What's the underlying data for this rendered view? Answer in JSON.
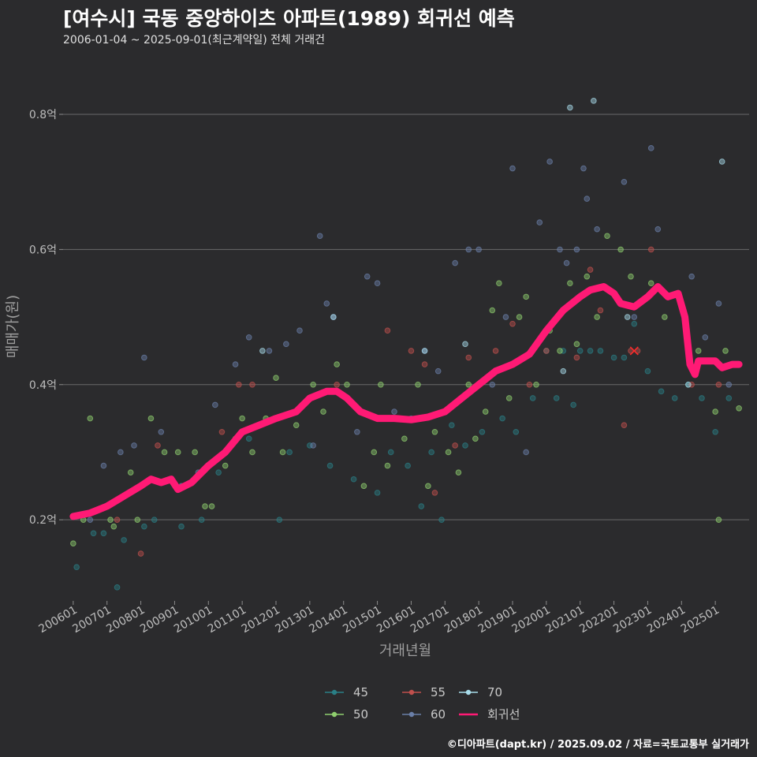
{
  "header": {
    "title": "[여수시] 국동 중앙하이츠 아파트(1989) 회귀선 예측",
    "subtitle": "2006-01-04 ~ 2025-09-01(최근계약일) 전체 거래건"
  },
  "footer": {
    "credit": "©디아파트(dapt.kr) / 2025.09.02 / 자료=국토교통부 실거래가"
  },
  "chart_data": {
    "type": "scatter",
    "title": "[여수시] 국동 중앙하이츠 아파트(1989) 회귀선 예측",
    "xlabel": "거래년월",
    "ylabel": "매매가(원)",
    "xlim": [
      2005.7,
      2026.0
    ],
    "ylim": [
      0.08,
      0.87
    ],
    "yticks": [
      0.2,
      0.4,
      0.6,
      0.8
    ],
    "ytick_labels": [
      "0.2억",
      "0.4억",
      "0.6억",
      "0.8억"
    ],
    "xticks": [
      2006,
      2007,
      2008,
      2009,
      2010,
      2011,
      2012,
      2013,
      2014,
      2015,
      2016,
      2017,
      2018,
      2019,
      2020,
      2021,
      2022,
      2023,
      2024,
      2025
    ],
    "xtick_labels": [
      "200601",
      "200701",
      "200801",
      "200901",
      "201001",
      "201101",
      "201201",
      "201301",
      "201401",
      "201501",
      "201601",
      "201701",
      "201801",
      "201901",
      "202001",
      "202101",
      "202201",
      "202301",
      "202401",
      "202501"
    ],
    "legend": [
      {
        "name": "45",
        "color": "#2a7f86"
      },
      {
        "name": "50",
        "color": "#8fcf6e"
      },
      {
        "name": "55",
        "color": "#c0504d"
      },
      {
        "name": "60",
        "color": "#6a7fa8"
      },
      {
        "name": "70",
        "color": "#a8dcea"
      },
      {
        "name": "회귀선",
        "color": "#ff1a75"
      }
    ],
    "series": [
      {
        "name": "45",
        "color": "#2a7f86",
        "points": [
          [
            2006.1,
            0.13
          ],
          [
            2006.6,
            0.18
          ],
          [
            2006.9,
            0.18
          ],
          [
            2007.3,
            0.1
          ],
          [
            2007.5,
            0.17
          ],
          [
            2008.1,
            0.19
          ],
          [
            2008.4,
            0.2
          ],
          [
            2009.2,
            0.19
          ],
          [
            2009.8,
            0.2
          ],
          [
            2010.3,
            0.27
          ],
          [
            2011.2,
            0.32
          ],
          [
            2012.1,
            0.2
          ],
          [
            2012.4,
            0.3
          ],
          [
            2013.0,
            0.31
          ],
          [
            2013.6,
            0.28
          ],
          [
            2014.3,
            0.26
          ],
          [
            2015.0,
            0.24
          ],
          [
            2015.4,
            0.3
          ],
          [
            2015.9,
            0.28
          ],
          [
            2016.3,
            0.22
          ],
          [
            2016.6,
            0.3
          ],
          [
            2016.9,
            0.2
          ],
          [
            2017.2,
            0.34
          ],
          [
            2017.6,
            0.31
          ],
          [
            2018.1,
            0.33
          ],
          [
            2018.7,
            0.35
          ],
          [
            2019.1,
            0.33
          ],
          [
            2019.6,
            0.38
          ],
          [
            2020.0,
            0.45
          ],
          [
            2020.3,
            0.38
          ],
          [
            2020.5,
            0.45
          ],
          [
            2020.8,
            0.37
          ],
          [
            2021.0,
            0.45
          ],
          [
            2021.3,
            0.45
          ],
          [
            2021.6,
            0.45
          ],
          [
            2022.0,
            0.44
          ],
          [
            2022.3,
            0.44
          ],
          [
            2022.6,
            0.49
          ],
          [
            2023.0,
            0.42
          ],
          [
            2023.4,
            0.39
          ],
          [
            2023.8,
            0.38
          ],
          [
            2024.2,
            0.4
          ],
          [
            2024.6,
            0.38
          ],
          [
            2025.0,
            0.33
          ],
          [
            2025.4,
            0.38
          ]
        ]
      },
      {
        "name": "50",
        "color": "#8fcf6e",
        "points": [
          [
            2006.0,
            0.165
          ],
          [
            2006.3,
            0.2
          ],
          [
            2006.5,
            0.35
          ],
          [
            2007.1,
            0.2
          ],
          [
            2007.2,
            0.19
          ],
          [
            2007.7,
            0.27
          ],
          [
            2007.9,
            0.2
          ],
          [
            2008.3,
            0.35
          ],
          [
            2008.7,
            0.3
          ],
          [
            2009.1,
            0.3
          ],
          [
            2009.6,
            0.3
          ],
          [
            2009.9,
            0.22
          ],
          [
            2010.1,
            0.22
          ],
          [
            2010.5,
            0.28
          ],
          [
            2010.8,
            0.32
          ],
          [
            2011.0,
            0.35
          ],
          [
            2011.3,
            0.3
          ],
          [
            2011.7,
            0.35
          ],
          [
            2012.0,
            0.41
          ],
          [
            2012.2,
            0.3
          ],
          [
            2012.6,
            0.34
          ],
          [
            2013.1,
            0.4
          ],
          [
            2013.4,
            0.36
          ],
          [
            2013.8,
            0.43
          ],
          [
            2014.1,
            0.4
          ],
          [
            2014.6,
            0.25
          ],
          [
            2014.9,
            0.3
          ],
          [
            2015.1,
            0.4
          ],
          [
            2015.3,
            0.28
          ],
          [
            2015.8,
            0.32
          ],
          [
            2016.2,
            0.4
          ],
          [
            2016.5,
            0.25
          ],
          [
            2016.7,
            0.33
          ],
          [
            2017.1,
            0.3
          ],
          [
            2017.4,
            0.27
          ],
          [
            2017.7,
            0.4
          ],
          [
            2017.9,
            0.32
          ],
          [
            2018.2,
            0.36
          ],
          [
            2018.4,
            0.51
          ],
          [
            2018.6,
            0.55
          ],
          [
            2018.9,
            0.38
          ],
          [
            2019.2,
            0.5
          ],
          [
            2019.4,
            0.53
          ],
          [
            2019.7,
            0.4
          ],
          [
            2020.1,
            0.48
          ],
          [
            2020.4,
            0.45
          ],
          [
            2020.7,
            0.55
          ],
          [
            2020.9,
            0.46
          ],
          [
            2021.2,
            0.56
          ],
          [
            2021.5,
            0.5
          ],
          [
            2021.8,
            0.62
          ],
          [
            2022.2,
            0.6
          ],
          [
            2022.5,
            0.56
          ],
          [
            2023.1,
            0.55
          ],
          [
            2023.5,
            0.5
          ],
          [
            2024.5,
            0.45
          ],
          [
            2025.0,
            0.36
          ],
          [
            2025.1,
            0.2
          ],
          [
            2025.3,
            0.45
          ],
          [
            2025.7,
            0.365
          ]
        ]
      },
      {
        "name": "55",
        "color": "#c0504d",
        "points": [
          [
            2007.3,
            0.2
          ],
          [
            2008.0,
            0.15
          ],
          [
            2008.5,
            0.31
          ],
          [
            2010.4,
            0.33
          ],
          [
            2010.9,
            0.4
          ],
          [
            2011.3,
            0.4
          ],
          [
            2013.8,
            0.4
          ],
          [
            2015.3,
            0.48
          ],
          [
            2016.0,
            0.45
          ],
          [
            2016.4,
            0.43
          ],
          [
            2016.7,
            0.24
          ],
          [
            2017.3,
            0.31
          ],
          [
            2017.7,
            0.44
          ],
          [
            2018.5,
            0.45
          ],
          [
            2019.0,
            0.49
          ],
          [
            2019.5,
            0.4
          ],
          [
            2020.0,
            0.45
          ],
          [
            2020.9,
            0.44
          ],
          [
            2021.3,
            0.57
          ],
          [
            2021.6,
            0.51
          ],
          [
            2022.3,
            0.34
          ],
          [
            2022.5,
            0.45
          ],
          [
            2022.7,
            0.45
          ],
          [
            2023.1,
            0.6
          ],
          [
            2024.3,
            0.4
          ],
          [
            2025.1,
            0.4
          ]
        ]
      },
      {
        "name": "60",
        "color": "#6a7fa8",
        "points": [
          [
            2006.5,
            0.2
          ],
          [
            2006.9,
            0.28
          ],
          [
            2007.4,
            0.3
          ],
          [
            2007.8,
            0.31
          ],
          [
            2008.1,
            0.44
          ],
          [
            2008.6,
            0.33
          ],
          [
            2009.2,
            0.25
          ],
          [
            2009.7,
            0.27
          ],
          [
            2010.2,
            0.37
          ],
          [
            2010.8,
            0.43
          ],
          [
            2011.2,
            0.47
          ],
          [
            2011.8,
            0.45
          ],
          [
            2012.3,
            0.46
          ],
          [
            2012.7,
            0.48
          ],
          [
            2013.1,
            0.31
          ],
          [
            2013.3,
            0.62
          ],
          [
            2013.5,
            0.52
          ],
          [
            2013.7,
            0.5
          ],
          [
            2014.4,
            0.33
          ],
          [
            2014.7,
            0.56
          ],
          [
            2015.0,
            0.55
          ],
          [
            2015.5,
            0.36
          ],
          [
            2016.0,
            0.35
          ],
          [
            2016.4,
            0.45
          ],
          [
            2016.8,
            0.42
          ],
          [
            2017.3,
            0.58
          ],
          [
            2017.7,
            0.6
          ],
          [
            2018.0,
            0.6
          ],
          [
            2018.4,
            0.4
          ],
          [
            2018.8,
            0.5
          ],
          [
            2019.0,
            0.72
          ],
          [
            2019.4,
            0.3
          ],
          [
            2019.8,
            0.64
          ],
          [
            2020.1,
            0.73
          ],
          [
            2020.4,
            0.6
          ],
          [
            2020.6,
            0.58
          ],
          [
            2020.9,
            0.6
          ],
          [
            2021.1,
            0.72
          ],
          [
            2021.2,
            0.675
          ],
          [
            2021.5,
            0.63
          ],
          [
            2022.3,
            0.7
          ],
          [
            2022.6,
            0.5
          ],
          [
            2023.1,
            0.75
          ],
          [
            2023.3,
            0.63
          ],
          [
            2024.3,
            0.56
          ],
          [
            2024.7,
            0.47
          ],
          [
            2025.1,
            0.52
          ],
          [
            2025.4,
            0.4
          ]
        ]
      },
      {
        "name": "70",
        "color": "#a8dcea",
        "points": [
          [
            2011.6,
            0.45
          ],
          [
            2013.7,
            0.5
          ],
          [
            2016.4,
            0.45
          ],
          [
            2017.6,
            0.46
          ],
          [
            2020.5,
            0.42
          ],
          [
            2020.7,
            0.81
          ],
          [
            2021.4,
            0.82
          ],
          [
            2022.4,
            0.5
          ],
          [
            2024.2,
            0.4
          ],
          [
            2025.2,
            0.73
          ]
        ]
      },
      {
        "name": "회귀선",
        "color": "#ff1a75",
        "line": [
          [
            2006.0,
            0.205
          ],
          [
            2006.5,
            0.21
          ],
          [
            2007.0,
            0.22
          ],
          [
            2007.5,
            0.235
          ],
          [
            2008.0,
            0.25
          ],
          [
            2008.3,
            0.26
          ],
          [
            2008.6,
            0.255
          ],
          [
            2008.9,
            0.26
          ],
          [
            2009.1,
            0.245
          ],
          [
            2009.5,
            0.255
          ],
          [
            2010.0,
            0.28
          ],
          [
            2010.5,
            0.3
          ],
          [
            2011.0,
            0.33
          ],
          [
            2011.5,
            0.34
          ],
          [
            2012.0,
            0.35
          ],
          [
            2012.6,
            0.36
          ],
          [
            2013.0,
            0.38
          ],
          [
            2013.5,
            0.39
          ],
          [
            2013.8,
            0.39
          ],
          [
            2014.1,
            0.38
          ],
          [
            2014.5,
            0.36
          ],
          [
            2015.0,
            0.35
          ],
          [
            2015.5,
            0.35
          ],
          [
            2016.0,
            0.348
          ],
          [
            2016.5,
            0.352
          ],
          [
            2017.0,
            0.36
          ],
          [
            2017.5,
            0.38
          ],
          [
            2018.0,
            0.4
          ],
          [
            2018.5,
            0.42
          ],
          [
            2019.0,
            0.43
          ],
          [
            2019.5,
            0.445
          ],
          [
            2020.0,
            0.48
          ],
          [
            2020.5,
            0.51
          ],
          [
            2021.0,
            0.53
          ],
          [
            2021.3,
            0.54
          ],
          [
            2021.7,
            0.545
          ],
          [
            2022.0,
            0.535
          ],
          [
            2022.2,
            0.52
          ],
          [
            2022.6,
            0.515
          ],
          [
            2023.0,
            0.53
          ],
          [
            2023.3,
            0.545
          ],
          [
            2023.6,
            0.53
          ],
          [
            2023.9,
            0.535
          ],
          [
            2024.1,
            0.5
          ],
          [
            2024.25,
            0.43
          ],
          [
            2024.4,
            0.415
          ],
          [
            2024.5,
            0.435
          ],
          [
            2025.0,
            0.435
          ],
          [
            2025.2,
            0.425
          ],
          [
            2025.5,
            0.43
          ],
          [
            2025.7,
            0.43
          ]
        ]
      }
    ],
    "marker": {
      "x": 2022.6,
      "y": 0.45,
      "symbol": "x"
    }
  }
}
